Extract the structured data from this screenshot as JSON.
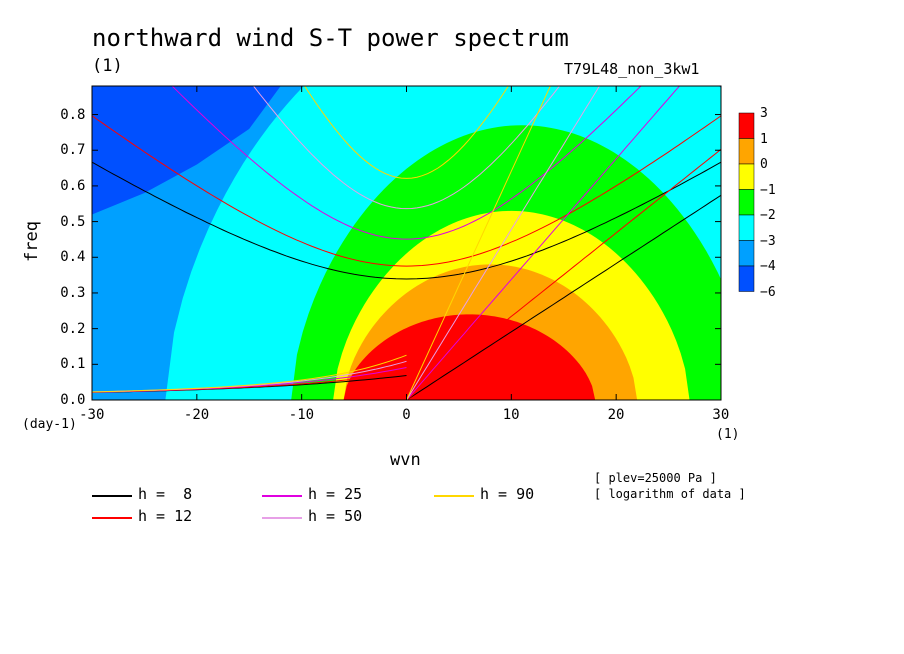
{
  "chart_data": {
    "type": "heatmap",
    "title": "northward wind S-T power spectrum",
    "subtitle_left": "(1)",
    "subtitle_right": "T79L48_non_3kw1",
    "xlabel": "wvn",
    "ylabel": "freq",
    "x_unit": "(1)",
    "y_unit": "(day-1)",
    "xlim": [
      -30,
      30
    ],
    "ylim": [
      0,
      0.88
    ],
    "x_ticks": [
      -30,
      -20,
      -10,
      0,
      10,
      20,
      30
    ],
    "x_tick_labels": [
      "-30",
      "-20",
      "-10",
      "0",
      "10",
      "20",
      "30"
    ],
    "y_ticks": [
      0.0,
      0.1,
      0.2,
      0.3,
      0.4,
      0.5,
      0.6,
      0.7,
      0.8
    ],
    "y_tick_labels": [
      "0.0",
      "0.1",
      "0.2",
      "0.3",
      "0.4",
      "0.5",
      "0.6",
      "0.7",
      "0.8"
    ],
    "colorbar": {
      "labels": [
        "3",
        "1",
        "0",
        "−1",
        "−2",
        "−3",
        "−4",
        "−6"
      ],
      "colors": [
        "#ff0000",
        "#ffa500",
        "#ffff00",
        "#00ff00",
        "#00ffff",
        "#00a0ff",
        "#0050ff"
      ]
    },
    "contour_levels": [
      {
        "fill": "#00ffff",
        "center_x": 10,
        "half_width_x": 33,
        "height": 1.15
      },
      {
        "fill": "#00ff00",
        "center_x": 11,
        "half_width_x": 22,
        "height": 0.77
      },
      {
        "fill": "#ffff00",
        "center_x": 10,
        "half_width_x": 17,
        "height": 0.53
      },
      {
        "fill": "#ffa500",
        "center_x": 8,
        "half_width_x": 14,
        "height": 0.38
      },
      {
        "fill": "#ff0000",
        "center_x": 6,
        "half_width_x": 12,
        "height": 0.24
      }
    ],
    "series": [
      {
        "name": "h =  8",
        "h": 8,
        "color": "#000000"
      },
      {
        "name": "h = 12",
        "h": 12,
        "color": "#ff0000"
      },
      {
        "name": "h = 25",
        "h": 25,
        "color": "#e000e0"
      },
      {
        "name": "h = 50",
        "h": 50,
        "color": "#e7a0e7"
      },
      {
        "name": "h = 90",
        "h": 90,
        "color": "#ffd700"
      }
    ],
    "notes": [
      "[ plev=25000 Pa ]",
      "[ logarithm of data ]"
    ]
  }
}
